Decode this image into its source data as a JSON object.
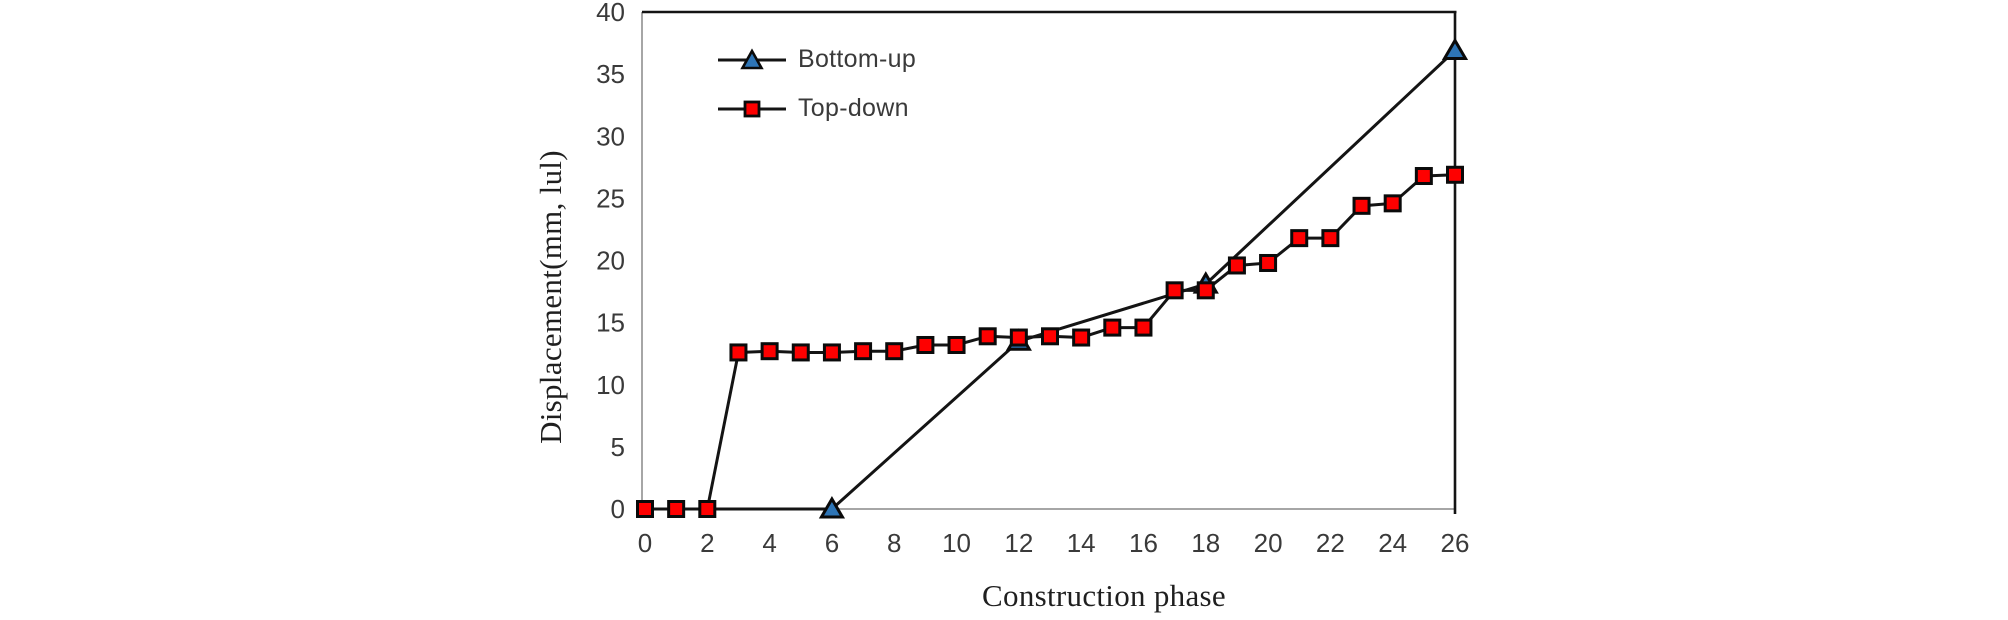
{
  "chart_data": {
    "type": "line",
    "title": "",
    "xlabel": "Construction phase",
    "ylabel": "Displacement(mm, lul)",
    "xlim": [
      0,
      26
    ],
    "ylim": [
      0,
      40
    ],
    "x_ticks": [
      0,
      2,
      4,
      6,
      8,
      10,
      12,
      14,
      16,
      18,
      20,
      22,
      24,
      26
    ],
    "y_ticks": [
      0,
      5,
      10,
      15,
      20,
      25,
      30,
      35,
      40
    ],
    "grid": false,
    "legend_position": "top-left-inside",
    "series": [
      {
        "name": "Bottom-up",
        "marker": "triangle",
        "marker_fill": "#2e75b6",
        "line_color": "#141414",
        "points": [
          [
            2,
            0
          ],
          [
            6,
            0
          ],
          [
            12,
            13.5
          ],
          [
            18,
            18.1
          ],
          [
            26,
            36.9
          ]
        ],
        "markers_at": [
          6,
          12,
          18,
          26
        ]
      },
      {
        "name": "Top-down",
        "marker": "square",
        "marker_fill": "#fe0000",
        "line_color": "#141414",
        "points": [
          [
            0,
            0
          ],
          [
            1,
            0
          ],
          [
            2,
            0
          ],
          [
            3,
            12.6
          ],
          [
            4,
            12.7
          ],
          [
            5,
            12.6
          ],
          [
            6,
            12.6
          ],
          [
            7,
            12.7
          ],
          [
            8,
            12.7
          ],
          [
            9,
            13.2
          ],
          [
            10,
            13.2
          ],
          [
            11,
            13.9
          ],
          [
            12,
            13.8
          ],
          [
            13,
            13.9
          ],
          [
            14,
            13.8
          ],
          [
            15,
            14.6
          ],
          [
            16,
            14.6
          ],
          [
            17,
            17.6
          ],
          [
            18,
            17.6
          ],
          [
            19,
            19.6
          ],
          [
            20,
            19.8
          ],
          [
            21,
            21.8
          ],
          [
            22,
            21.8
          ],
          [
            23,
            24.4
          ],
          [
            24,
            24.6
          ],
          [
            25,
            26.8
          ],
          [
            26,
            26.9
          ]
        ],
        "markers_at": "all"
      }
    ]
  },
  "style": {
    "axis_line_color": "#a6a6a6",
    "border_color": "#141414",
    "tick_label_color": "#3a3a3a",
    "marker_edge_color": "#0a0a0a",
    "background": "#ffffff"
  }
}
